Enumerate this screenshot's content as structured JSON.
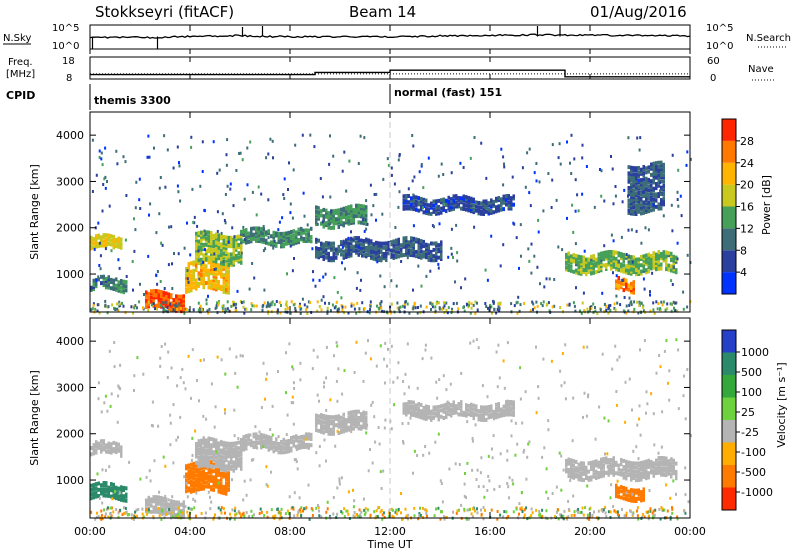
{
  "header": {
    "station": "Stokkseyri (fitACF)",
    "beam": "Beam 14",
    "date": "01/Aug/2016"
  },
  "nsky_panel": {
    "left_label": "N.Sky",
    "right_label": "N.Search",
    "left_ticks": [
      "10^5",
      "10^0"
    ],
    "right_ticks": [
      "10^5",
      "10^0"
    ]
  },
  "freq_panel": {
    "left_label_line1": "Freq.",
    "left_label_line2": "[MHz]",
    "right_label": "Nave",
    "left_ticks": [
      "18",
      "8"
    ],
    "right_ticks": [
      "60",
      "0"
    ]
  },
  "cpid": {
    "label": "CPID",
    "modes": [
      {
        "name": "themis 3300",
        "start": "00:00"
      },
      {
        "name": "normal (fast) 151",
        "start": "12:00"
      }
    ]
  },
  "x_axis": {
    "title": "Time UT",
    "ticks": [
      "00:00",
      "04:00",
      "08:00",
      "12:00",
      "16:00",
      "20:00",
      "00:00"
    ]
  },
  "colors": {
    "power_scale": [
      "#0033ff",
      "#2a3f9e",
      "#3d6e78",
      "#46a05a",
      "#c8c81e",
      "#ffb400",
      "#ff7800",
      "#ff2600"
    ],
    "velocity_scale": [
      "#2640c8",
      "#2a8a6a",
      "#34a83a",
      "#6ed23e",
      "#c0c0c0",
      "#ffae00",
      "#ff7b00",
      "#ff2a00"
    ],
    "ground_scatter": "#b4b4b4"
  },
  "chart_data": [
    {
      "type": "line",
      "title": "N.Sky / N.Search",
      "x": [
        "00:00",
        "02:30",
        "06:00",
        "07:00",
        "12:00",
        "18:30",
        "19:00",
        "24:00"
      ],
      "series": [
        {
          "name": "N.Sky",
          "values": [
            300,
            250,
            600,
            400,
            350,
            900,
            800,
            500
          ]
        }
      ]
    },
    {
      "type": "line",
      "title": "Freq. / Nave",
      "x": [
        "00:00",
        "09:00",
        "12:00",
        "19:00",
        "24:00"
      ],
      "series": [
        {
          "name": "Freq.",
          "values": [
            10,
            11,
            12,
            9,
            9
          ]
        },
        {
          "name": "Nave",
          "values": [
            10,
            10,
            12,
            9,
            9
          ]
        }
      ]
    },
    {
      "type": "heatmap",
      "title": "Power [dB]",
      "xlabel": "Time UT",
      "ylabel": "Slant Range [km]",
      "xlim": [
        0,
        24
      ],
      "ylim": [
        180,
        4500
      ],
      "yticks": [
        "1000",
        "2000",
        "3000",
        "4000"
      ],
      "colorbar": {
        "label": "Power [dB]",
        "ticks": [
          "4",
          "8",
          "12",
          "16",
          "20",
          "24",
          "28"
        ],
        "range": [
          0,
          30
        ]
      },
      "bands": [
        {
          "t": [
            0,
            1.3
          ],
          "r": [
            1600,
            1850
          ],
          "value": 18
        },
        {
          "t": [
            0,
            1.5
          ],
          "r": [
            700,
            950
          ],
          "value": 10
        },
        {
          "t": [
            2.2,
            3.8
          ],
          "r": [
            300,
            650
          ],
          "value": 26
        },
        {
          "t": [
            3.8,
            5.5
          ],
          "r": [
            700,
            1300
          ],
          "value": 20
        },
        {
          "t": [
            4.2,
            6.0
          ],
          "r": [
            1300,
            1900
          ],
          "value": 15
        },
        {
          "t": [
            6.0,
            8.8
          ],
          "r": [
            1700,
            2000
          ],
          "value": 12
        },
        {
          "t": [
            9.0,
            11.0
          ],
          "r": [
            2100,
            2500
          ],
          "value": 12
        },
        {
          "t": [
            9.0,
            14.0
          ],
          "r": [
            1400,
            1800
          ],
          "value": 8
        },
        {
          "t": [
            12.5,
            17.0
          ],
          "r": [
            2400,
            2700
          ],
          "value": 6
        },
        {
          "t": [
            19.0,
            23.5
          ],
          "r": [
            1100,
            1500
          ],
          "value": 14
        },
        {
          "t": [
            21.0,
            21.8
          ],
          "r": [
            700,
            950
          ],
          "value": 24
        },
        {
          "t": [
            21.5,
            23.0
          ],
          "r": [
            2400,
            3400
          ],
          "value": 8
        }
      ]
    },
    {
      "type": "heatmap",
      "title": "Velocity [m s-1]",
      "xlabel": "Time UT",
      "ylabel": "Slant Range [km]",
      "xlim": [
        0,
        24
      ],
      "ylim": [
        180,
        4500
      ],
      "yticks": [
        "1000",
        "2000",
        "3000",
        "4000"
      ],
      "colorbar": {
        "label": "Velocity [m s⁻¹]",
        "ticks": [
          "1000",
          "500",
          "100",
          "25",
          "-25",
          "-100",
          "-500",
          "-1000"
        ],
        "range": [
          -1200,
          1200
        ]
      },
      "bands": [
        {
          "t": [
            0,
            1.3
          ],
          "r": [
            1600,
            1850
          ],
          "value": 0
        },
        {
          "t": [
            0,
            1.5
          ],
          "r": [
            650,
            950
          ],
          "value": 150
        },
        {
          "t": [
            2.2,
            3.8
          ],
          "r": [
            300,
            650
          ],
          "value": 0
        },
        {
          "t": [
            3.8,
            5.5
          ],
          "r": [
            800,
            1400
          ],
          "value": -300
        },
        {
          "t": [
            4.2,
            6.0
          ],
          "r": [
            1300,
            1900
          ],
          "value": 0
        },
        {
          "t": [
            6.0,
            8.8
          ],
          "r": [
            1700,
            2000
          ],
          "value": 0
        },
        {
          "t": [
            9.0,
            11.0
          ],
          "r": [
            2100,
            2500
          ],
          "value": 0
        },
        {
          "t": [
            12.5,
            17.0
          ],
          "r": [
            2400,
            2700
          ],
          "value": 0
        },
        {
          "t": [
            19.0,
            23.5
          ],
          "r": [
            1100,
            1500
          ],
          "value": 0
        },
        {
          "t": [
            21.0,
            22.2
          ],
          "r": [
            650,
            900
          ],
          "value": -400
        }
      ]
    }
  ]
}
